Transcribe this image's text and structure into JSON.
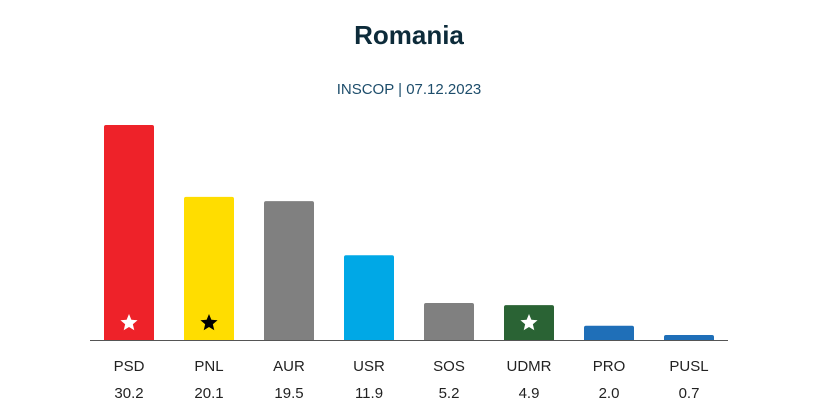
{
  "chart_data": {
    "type": "bar",
    "title": "Romania",
    "subtitle": "INSCOP | 07.12.2023",
    "categories": [
      "PSD",
      "PNL",
      "AUR",
      "USR",
      "SOS",
      "UDMR",
      "PRO",
      "PUSL"
    ],
    "values": [
      30.2,
      20.1,
      19.5,
      11.9,
      5.2,
      4.9,
      2.0,
      0.7
    ],
    "value_labels": [
      "30.2",
      "20.1",
      "19.5",
      "11.9",
      "5.2",
      "4.9",
      "2.0",
      "0.7"
    ],
    "colors": [
      "#ee2229",
      "#ffdd00",
      "#808080",
      "#00a8e6",
      "#808080",
      "#2a6334",
      "#1f6fb8",
      "#1f6fb8"
    ],
    "star_colors": [
      "#ffffff",
      "#000000",
      null,
      null,
      null,
      "#ffffff",
      null,
      null
    ]
  }
}
